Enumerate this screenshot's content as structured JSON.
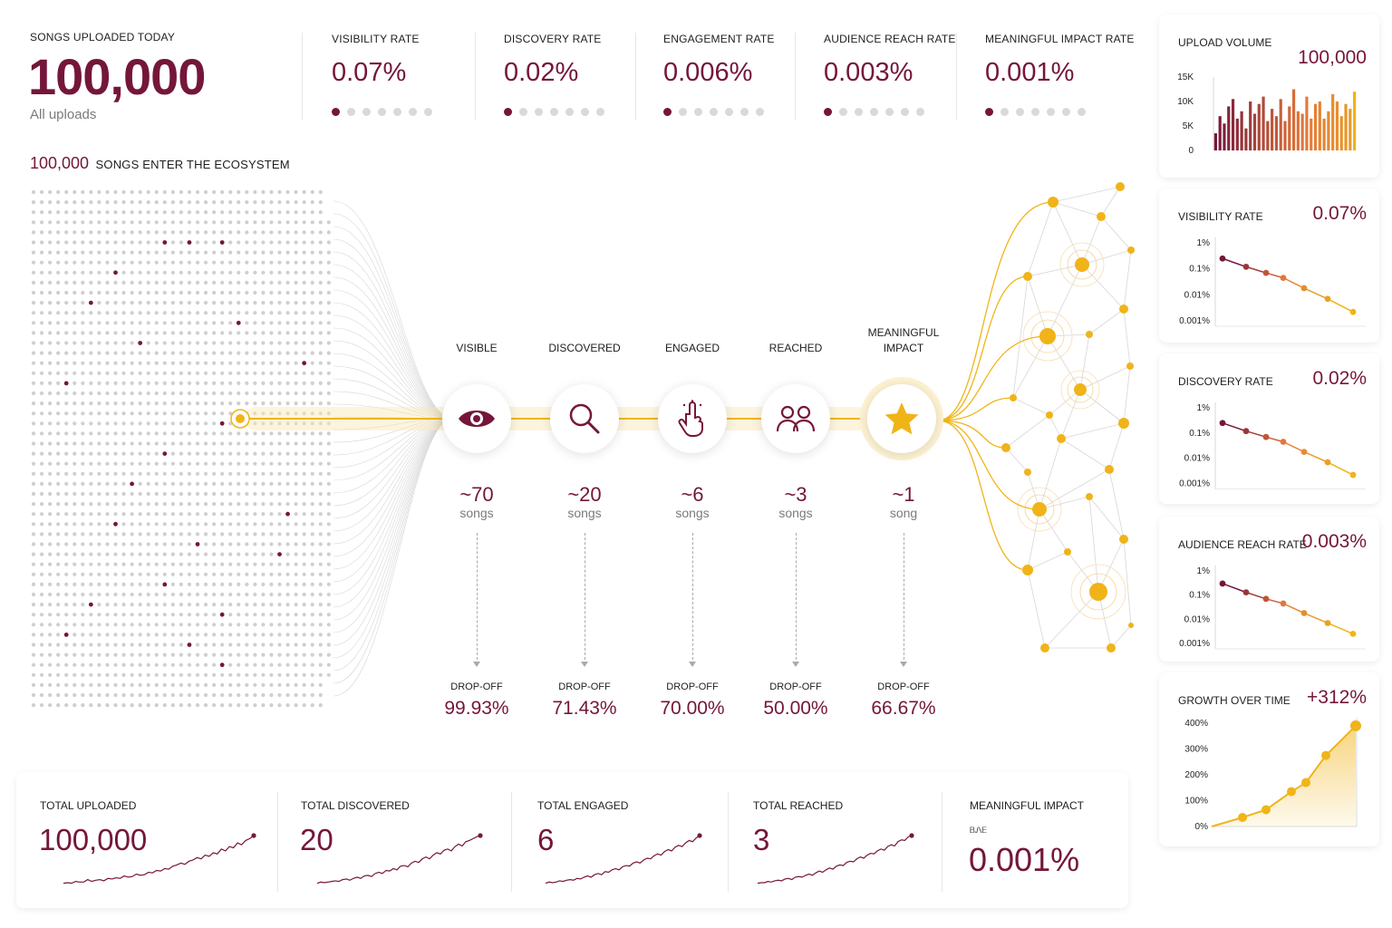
{
  "header": {
    "uploads": {
      "label": "SONGS UPLOADED TODAY",
      "value": "100,000",
      "sub": "All uploads"
    },
    "rates": [
      {
        "label": "VISIBILITY RATE",
        "value": "0.07%"
      },
      {
        "label": "DISCOVERY RATE",
        "value": "0.02%"
      },
      {
        "label": "ENGAGEMENT RATE",
        "value": "0.006%"
      },
      {
        "label": "AUDIENCE REACH RATE",
        "value": "0.003%"
      },
      {
        "label": "MEANINGFUL IMPACT RATE",
        "value": "0.001%"
      }
    ]
  },
  "ecosystem": {
    "count": "100,000",
    "label": "SONGS ENTER THE ECOSYSTEM"
  },
  "funnel": {
    "stages": [
      {
        "label": "VISIBLE",
        "icon": "eye-icon",
        "count": "~70",
        "unit": "songs",
        "drop_label": "DROP-OFF",
        "drop": "99.93%"
      },
      {
        "label": "DISCOVERED",
        "icon": "search-icon",
        "count": "~20",
        "unit": "songs",
        "drop_label": "DROP-OFF",
        "drop": "71.43%"
      },
      {
        "label": "ENGAGED",
        "icon": "tap-icon",
        "count": "~6",
        "unit": "songs",
        "drop_label": "DROP-OFF",
        "drop": "70.00%"
      },
      {
        "label": "REACHED",
        "icon": "people-icon",
        "count": "~3",
        "unit": "songs",
        "drop_label": "DROP-OFF",
        "drop": "50.00%"
      },
      {
        "label": "MEANINGFUL\nIMPACT",
        "icon": "star-icon",
        "count": "~1",
        "unit": "song",
        "drop_label": "DROP-OFF",
        "drop": "66.67%"
      }
    ]
  },
  "sidebar": {
    "upload_volume": {
      "title": "UPLOAD VOLUME",
      "value": "100,000",
      "ticks": [
        "15K",
        "10K",
        "5K",
        "0"
      ]
    },
    "visibility": {
      "title": "VISIBILITY RATE",
      "value": "0.07%"
    },
    "discovery": {
      "title": "DISCOVERY RATE",
      "value": "0.02%"
    },
    "reach": {
      "title": "AUDIENCE REACH RATE",
      "value": "0.003%"
    },
    "growth": {
      "title": "GROWTH OVER TIME",
      "value": "+312%",
      "ticks": [
        "400%",
        "300%",
        "200%",
        "100%",
        "0%"
      ]
    },
    "log_ticks": [
      "1%",
      "0.1%",
      "0.01%",
      "0.001%"
    ]
  },
  "bottom": [
    {
      "label": "TOTAL UPLOADED",
      "value": "100,000"
    },
    {
      "label": "TOTAL DISCOVERED",
      "value": "20"
    },
    {
      "label": "TOTAL ENGAGED",
      "value": "6"
    },
    {
      "label": "TOTAL REACHED",
      "value": "3"
    },
    {
      "label": "MEANINGFUL IMPACT",
      "value": "0.001%",
      "sub": "ᏴᏁᎬ"
    }
  ],
  "colors": {
    "maroon": "#74163a",
    "gold": "#f0b418",
    "orange": "#e2773a",
    "gray": "#d2d2d2"
  },
  "chart_data": [
    {
      "type": "bar",
      "title": "UPLOAD VOLUME",
      "ylim": [
        0,
        15000
      ],
      "ticks": [
        "0",
        "5K",
        "10K",
        "15K"
      ],
      "values": [
        3500,
        7000,
        5500,
        9000,
        10500,
        6500,
        8000,
        4500,
        10000,
        7500,
        9500,
        11000,
        6000,
        8500,
        7000,
        10500,
        6000,
        9000,
        12500,
        8000,
        7500,
        11000,
        6500,
        9500,
        10000,
        6500,
        8000,
        11500,
        10000,
        7000,
        9500,
        8500,
        12000
      ]
    },
    {
      "type": "line",
      "title": "VISIBILITY RATE",
      "yscale": "log",
      "yticks": [
        "1%",
        "0.1%",
        "0.01%",
        "0.001%"
      ],
      "values": [
        0.25,
        0.12,
        0.07,
        0.045,
        0.018,
        0.007,
        0.0022
      ]
    },
    {
      "type": "line",
      "title": "DISCOVERY RATE",
      "yscale": "log",
      "yticks": [
        "1%",
        "0.1%",
        "0.01%",
        "0.001%"
      ],
      "values": [
        0.25,
        0.12,
        0.07,
        0.045,
        0.018,
        0.007,
        0.0022
      ]
    },
    {
      "type": "line",
      "title": "AUDIENCE REACH RATE",
      "yscale": "log",
      "yticks": [
        "1%",
        "0.1%",
        "0.01%",
        "0.001%"
      ],
      "values": [
        0.3,
        0.13,
        0.07,
        0.045,
        0.018,
        0.007,
        0.0025
      ]
    },
    {
      "type": "area",
      "title": "GROWTH OVER TIME",
      "ylim": [
        0,
        400
      ],
      "yticks": [
        "0%",
        "100%",
        "200%",
        "300%",
        "400%"
      ],
      "values": [
        0,
        35,
        65,
        135,
        170,
        275,
        390
      ]
    },
    {
      "type": "line",
      "title": "TOTAL UPLOADED",
      "values": [
        2,
        3,
        2,
        5,
        4,
        4,
        8,
        5,
        7,
        8,
        6,
        10,
        9,
        11,
        10,
        14,
        12,
        13,
        17,
        15,
        16,
        20,
        19,
        23,
        22,
        26,
        25,
        30,
        32,
        35,
        33,
        38,
        40,
        44,
        42,
        48,
        46,
        52,
        50,
        58,
        55,
        62,
        60,
        68,
        65,
        72,
        75,
        80
      ]
    },
    {
      "type": "line",
      "title": "TOTAL DISCOVERED",
      "values": [
        2,
        4,
        3,
        4,
        5,
        6,
        5,
        8,
        9,
        7,
        10,
        12,
        10,
        14,
        15,
        13,
        18,
        20,
        18,
        23,
        22,
        26,
        24,
        30,
        31,
        29,
        35,
        38,
        36,
        42,
        45,
        42,
        48,
        52,
        50,
        56,
        58,
        55,
        62,
        66,
        63,
        70,
        72,
        75,
        78,
        80
      ]
    },
    {
      "type": "line",
      "title": "TOTAL ENGAGED",
      "values": [
        2,
        4,
        3,
        4,
        6,
        5,
        7,
        8,
        7,
        10,
        9,
        12,
        14,
        12,
        16,
        18,
        16,
        21,
        20,
        24,
        26,
        24,
        29,
        31,
        30,
        35,
        37,
        35,
        40,
        43,
        42,
        47,
        50,
        48,
        54,
        57,
        55,
        61,
        64,
        62,
        68,
        72,
        70,
        76,
        80
      ]
    },
    {
      "type": "line",
      "title": "TOTAL REACHED",
      "values": [
        2,
        3,
        3,
        5,
        4,
        6,
        7,
        6,
        9,
        10,
        8,
        12,
        13,
        12,
        15,
        17,
        15,
        19,
        22,
        20,
        24,
        27,
        25,
        30,
        32,
        31,
        36,
        38,
        37,
        42,
        45,
        43,
        48,
        51,
        50,
        55,
        58,
        56,
        62,
        65,
        63,
        70,
        73,
        72,
        78,
        80
      ]
    }
  ]
}
